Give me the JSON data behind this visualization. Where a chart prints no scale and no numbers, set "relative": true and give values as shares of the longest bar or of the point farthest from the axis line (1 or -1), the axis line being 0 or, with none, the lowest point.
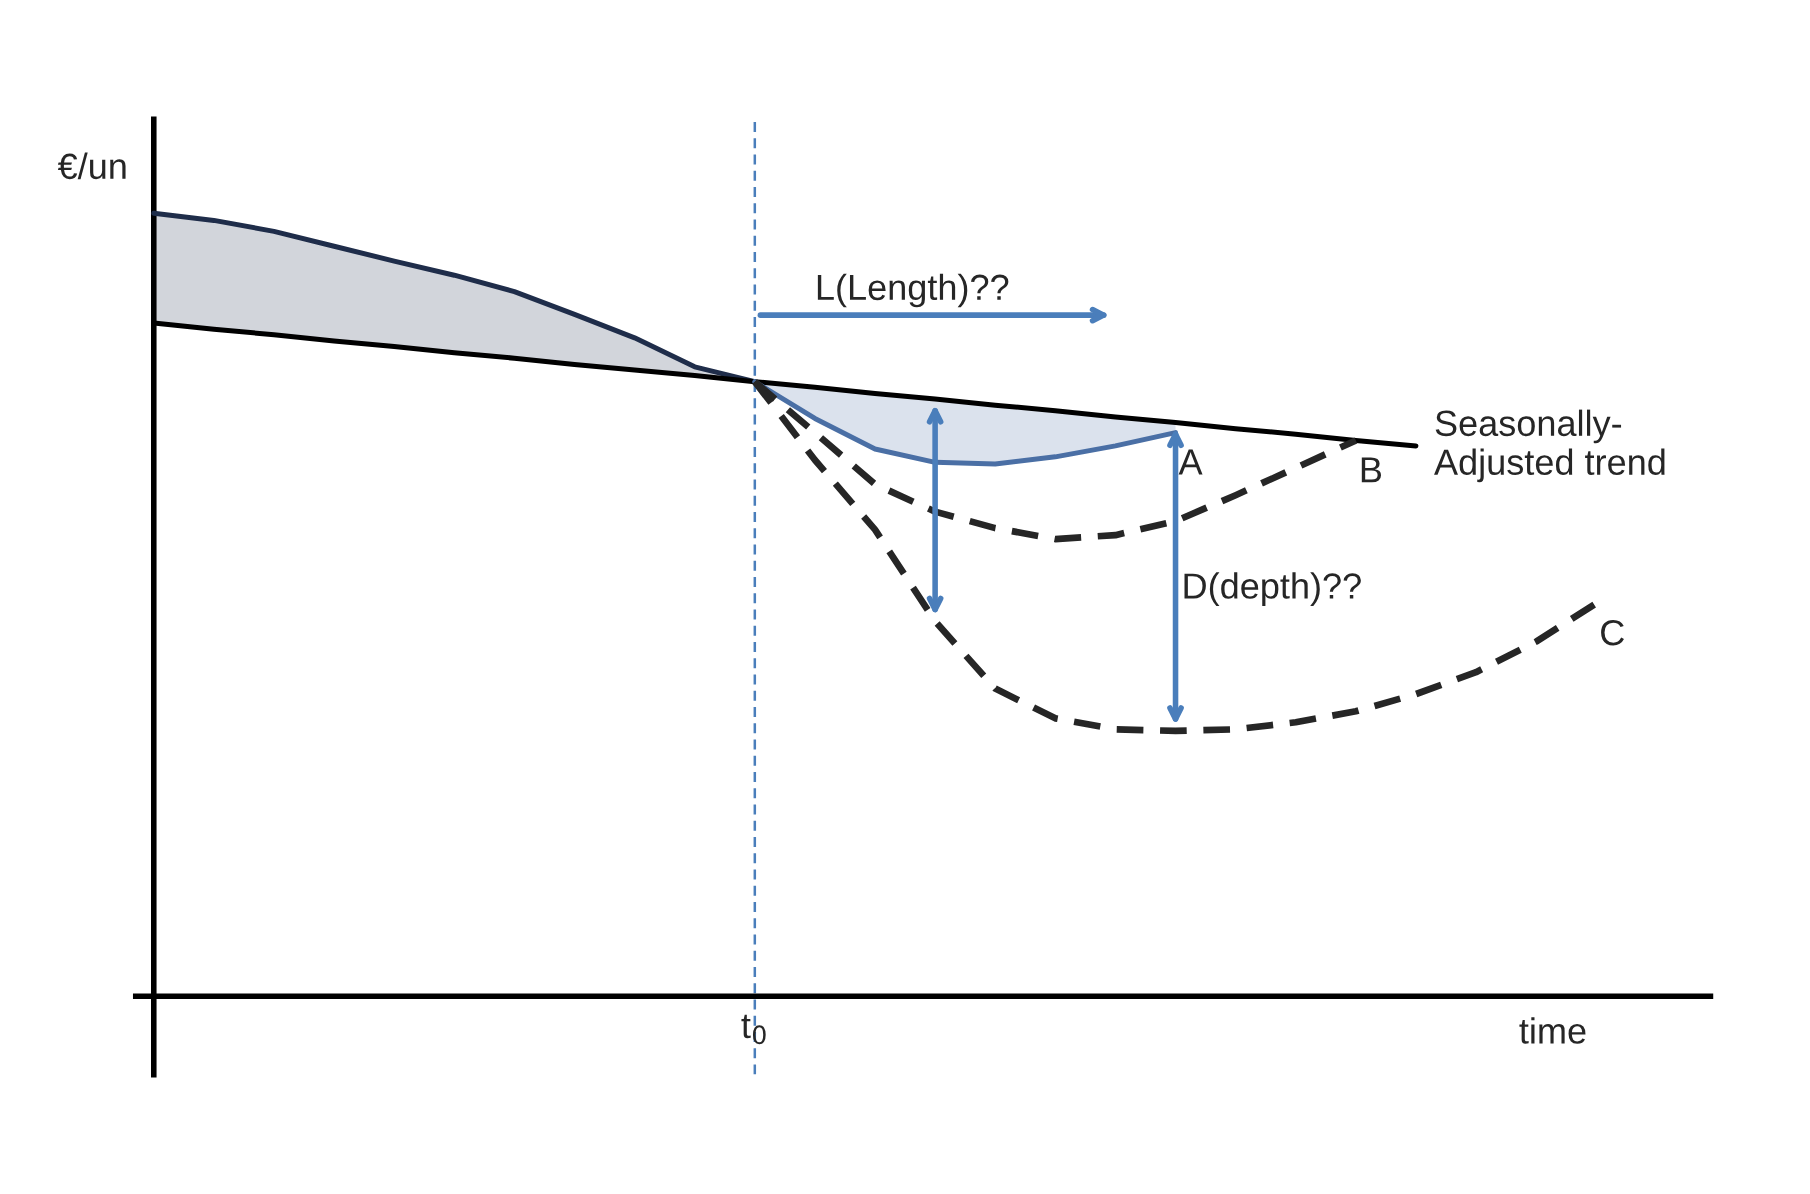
{
  "chart_data": {
    "type": "line",
    "relative": true,
    "xlabel": "time",
    "ylabel": "€/un",
    "categories": [
      null,
      null,
      null,
      null,
      null,
      null,
      null,
      null,
      null,
      null,
      null,
      null,
      null,
      null,
      null,
      null,
      null,
      null,
      null,
      null,
      null,
      null,
      null,
      null,
      null
    ],
    "annotations": [
      "L(Length)??",
      "D(depth)??",
      "t$_{0}$"
    ],
    "series": [
      {
        "color": "#1f2d4a",
        "line_style": "solid",
        "values": [
          1.0,
          0.991,
          0.977,
          0.958,
          0.939,
          0.921,
          0.9,
          0.871,
          0.841,
          0.804,
          0.785,
          null,
          null,
          null,
          null,
          null,
          null,
          null,
          null,
          null,
          null,
          null,
          null,
          null,
          null
        ],
        "lower": [
          0.86,
          0.852,
          0.845,
          0.837,
          0.83,
          0.822,
          0.815,
          0.807,
          0.8,
          0.793,
          0.785,
          null,
          null,
          null,
          null,
          null,
          null,
          null,
          null,
          null,
          null,
          null,
          null,
          null,
          null
        ],
        "upper": [
          1.0,
          0.991,
          0.977,
          0.958,
          0.939,
          0.921,
          0.9,
          0.871,
          0.841,
          0.804,
          0.785,
          null,
          null,
          null,
          null,
          null,
          null,
          null,
          null,
          null,
          null,
          null,
          null,
          null,
          null
        ]
      },
      {
        "name": "Seasonally-\nAdjusted trend",
        "color": "#000000",
        "line_style": "solid",
        "values": [
          0.86,
          0.852,
          0.845,
          0.837,
          0.83,
          0.822,
          0.815,
          0.807,
          0.8,
          0.793,
          0.785,
          0.778,
          0.77,
          0.763,
          0.755,
          0.748,
          0.74,
          0.733,
          0.725,
          0.718,
          0.71,
          0.703,
          null,
          null,
          null
        ]
      },
      {
        "name": "A",
        "color": "#4a6fa5",
        "line_style": "solid",
        "values": [
          null,
          null,
          null,
          null,
          null,
          null,
          null,
          null,
          null,
          null,
          0.785,
          0.738,
          0.699,
          0.682,
          0.68,
          0.689,
          0.703,
          0.72,
          null,
          null,
          null,
          null,
          null,
          null,
          null
        ],
        "lower": [
          null,
          null,
          null,
          null,
          null,
          null,
          null,
          null,
          null,
          null,
          0.785,
          0.738,
          0.699,
          0.682,
          0.68,
          0.689,
          0.703,
          0.72,
          null,
          null,
          null,
          null,
          null,
          null,
          null
        ],
        "upper": [
          null,
          null,
          null,
          null,
          null,
          null,
          null,
          null,
          null,
          null,
          0.785,
          0.778,
          0.77,
          0.763,
          0.755,
          0.748,
          0.74,
          0.733,
          null,
          null,
          null,
          null,
          null,
          null,
          null
        ]
      },
      {
        "name": "B",
        "color": "#262626",
        "line_style": "dashed",
        "values": [
          null,
          null,
          null,
          null,
          null,
          null,
          null,
          null,
          null,
          null,
          0.785,
          0.72,
          0.654,
          0.619,
          0.598,
          0.584,
          0.589,
          0.607,
          0.64,
          0.675,
          0.71,
          null,
          null,
          null,
          null
        ]
      },
      {
        "name": "C",
        "color": "#262626",
        "line_style": "dashed",
        "values": [
          null,
          null,
          null,
          null,
          null,
          null,
          null,
          null,
          null,
          null,
          0.785,
          0.685,
          0.596,
          0.479,
          0.393,
          0.355,
          0.341,
          0.339,
          0.341,
          0.35,
          0.364,
          0.386,
          0.414,
          0.453,
          0.502
        ]
      }
    ]
  }
}
